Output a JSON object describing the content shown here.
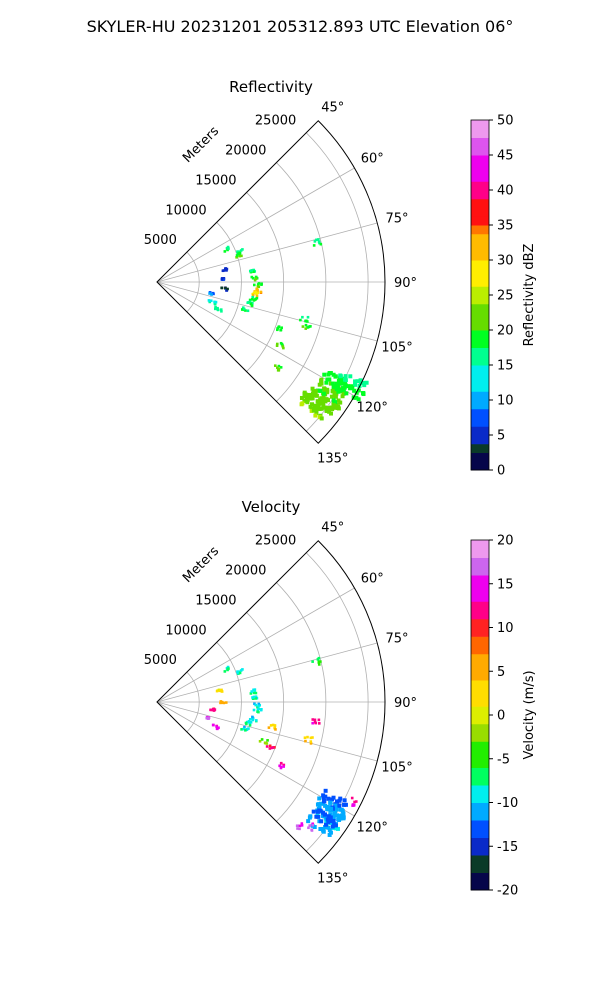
{
  "suptitle": "SKYLER-HU  20231201  205312.893 UTC Elevation 06°",
  "chart_data": [
    {
      "type": "polar-sector",
      "title": "Reflectivity",
      "range_label": "Meters",
      "range_ticks": [
        5000,
        10000,
        15000,
        20000,
        25000
      ],
      "range_max": 27000,
      "azimuth_range_deg": [
        45,
        135
      ],
      "azimuth_ticks": [
        "45°",
        "60°",
        "75°",
        "90°",
        "105°",
        "120°",
        "135°"
      ],
      "grid": true,
      "colorbar": {
        "label": "Reflectivity dBZ",
        "min": 0,
        "max": 50,
        "ticks": [
          0,
          5,
          10,
          15,
          20,
          25,
          30,
          35,
          40,
          45,
          50
        ]
      },
      "echoes": [
        {
          "az": 65,
          "r": 9000,
          "v": 16
        },
        {
          "az": 70,
          "r": 10500,
          "v": 15
        },
        {
          "az": 72,
          "r": 10200,
          "v": 20
        },
        {
          "az": 84,
          "r": 11500,
          "v": 17
        },
        {
          "az": 88,
          "r": 11700,
          "v": 20
        },
        {
          "az": 92,
          "r": 12000,
          "v": 20
        },
        {
          "az": 95,
          "r": 12000,
          "v": 32
        },
        {
          "az": 97,
          "r": 11900,
          "v": 28
        },
        {
          "az": 100,
          "r": 11600,
          "v": 18
        },
        {
          "az": 103,
          "r": 11300,
          "v": 17
        },
        {
          "az": 107,
          "r": 10900,
          "v": 16
        },
        {
          "az": 80,
          "r": 8000,
          "v": 5
        },
        {
          "az": 88,
          "r": 8000,
          "v": 6
        },
        {
          "az": 96,
          "r": 8000,
          "v": 3
        },
        {
          "az": 102,
          "r": 6500,
          "v": 8
        },
        {
          "az": 110,
          "r": 7000,
          "v": 14
        },
        {
          "az": 114,
          "r": 8000,
          "v": 15
        },
        {
          "az": 117,
          "r": 16500,
          "v": 20
        },
        {
          "az": 125,
          "r": 17500,
          "v": 20
        },
        {
          "az": 120,
          "r": 24000,
          "v": 20
        },
        {
          "az": 123,
          "r": 24500,
          "v": 21
        },
        {
          "az": 126,
          "r": 24000,
          "v": 21
        },
        {
          "az": 128,
          "r": 23500,
          "v": 22
        },
        {
          "az": 118,
          "r": 26000,
          "v": 17
        },
        {
          "az": 76,
          "r": 19500,
          "v": 16
        },
        {
          "az": 104,
          "r": 18000,
          "v": 17
        },
        {
          "az": 107,
          "r": 18500,
          "v": 20
        },
        {
          "az": 111,
          "r": 15500,
          "v": 19
        }
      ]
    },
    {
      "type": "polar-sector",
      "title": "Velocity",
      "range_label": "Meters",
      "range_ticks": [
        5000,
        10000,
        15000,
        20000,
        25000
      ],
      "range_max": 27000,
      "azimuth_range_deg": [
        45,
        135
      ],
      "azimuth_ticks": [
        "45°",
        "60°",
        "75°",
        "90°",
        "105°",
        "120°",
        "135°"
      ],
      "grid": true,
      "colorbar": {
        "label": "Velocity (m/s)",
        "min": -20,
        "max": 20,
        "ticks": [
          -20,
          -15,
          -10,
          -5,
          0,
          5,
          10,
          15,
          20
        ]
      },
      "echoes": [
        {
          "az": 65,
          "r": 9000,
          "v": -8
        },
        {
          "az": 70,
          "r": 10500,
          "v": -9
        },
        {
          "az": 84,
          "r": 11500,
          "v": -8
        },
        {
          "az": 88,
          "r": 11700,
          "v": -8
        },
        {
          "az": 92,
          "r": 12000,
          "v": -9
        },
        {
          "az": 95,
          "r": 12000,
          "v": -8
        },
        {
          "az": 100,
          "r": 11600,
          "v": -9
        },
        {
          "az": 103,
          "r": 11300,
          "v": -8
        },
        {
          "az": 107,
          "r": 10900,
          "v": -9
        },
        {
          "az": 80,
          "r": 7500,
          "v": 2
        },
        {
          "az": 90,
          "r": 7800,
          "v": 5
        },
        {
          "az": 98,
          "r": 6500,
          "v": 12
        },
        {
          "az": 108,
          "r": 6500,
          "v": 17
        },
        {
          "az": 113,
          "r": 7500,
          "v": 14
        },
        {
          "az": 117,
          "r": 16500,
          "v": 13
        },
        {
          "az": 104,
          "r": 18500,
          "v": 3
        },
        {
          "az": 97,
          "r": 19000,
          "v": 12
        },
        {
          "az": 120,
          "r": 24000,
          "v": -12
        },
        {
          "az": 123,
          "r": 24500,
          "v": -11
        },
        {
          "az": 126,
          "r": 24000,
          "v": -12
        },
        {
          "az": 129,
          "r": 23500,
          "v": 17
        },
        {
          "az": 131,
          "r": 22500,
          "v": 16
        },
        {
          "az": 117,
          "r": 26000,
          "v": 13
        },
        {
          "az": 76,
          "r": 19500,
          "v": -6
        },
        {
          "az": 102,
          "r": 14000,
          "v": 3
        },
        {
          "az": 110,
          "r": 13500,
          "v": -3
        },
        {
          "az": 112,
          "r": 14500,
          "v": 12
        }
      ]
    }
  ]
}
